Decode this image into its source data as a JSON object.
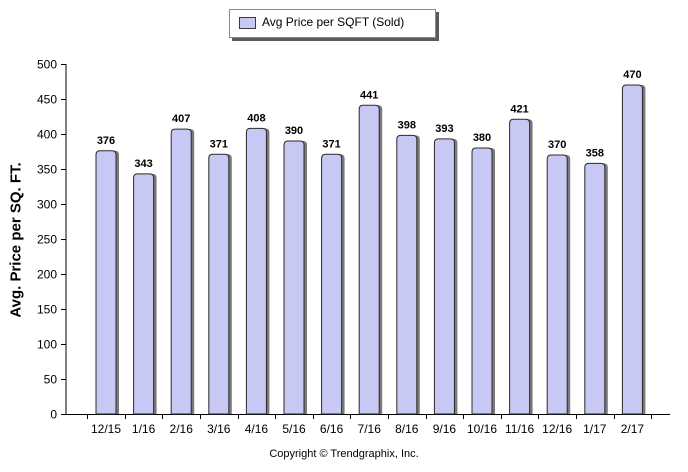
{
  "chart_data": {
    "type": "bar",
    "title": "",
    "xlabel": "",
    "ylabel": "Avg. Price per SQ. FT.",
    "categories": [
      "12/15",
      "1/16",
      "2/16",
      "3/16",
      "4/16",
      "5/16",
      "6/16",
      "7/16",
      "8/16",
      "9/16",
      "10/16",
      "11/16",
      "12/16",
      "1/17",
      "2/17"
    ],
    "series": [
      {
        "name": "Avg Price per SQFT (Sold)",
        "values": [
          376,
          343,
          407,
          371,
          408,
          390,
          371,
          441,
          398,
          393,
          380,
          421,
          370,
          358,
          470
        ],
        "color": "#c8c8f4"
      }
    ],
    "ylim": [
      0,
      500
    ],
    "yticks": [
      0,
      50,
      100,
      150,
      200,
      250,
      300,
      350,
      400,
      450,
      500
    ],
    "data_labels": true,
    "legend_position": "top"
  },
  "footer": {
    "copyright": "Copyright © Trendgraphix, Inc."
  }
}
